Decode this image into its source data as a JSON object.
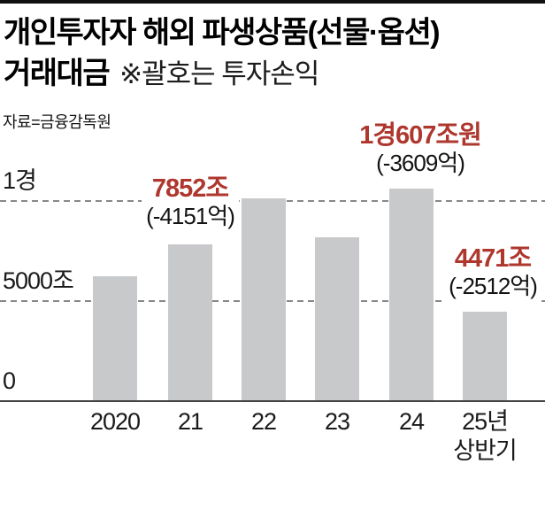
{
  "title": {
    "line1": "개인투자자 해외 파생상품(선물·옵션)",
    "line2": "거래대금",
    "note": "※괄호는 투자손익"
  },
  "source": "자료=금융감독원",
  "chart_data": {
    "type": "bar",
    "title": "개인투자자 해외 파생상품(선물·옵션) 거래대금",
    "note": "※괄호는 투자손익 (values in parentheses are investor profit/loss)",
    "source": "자료=금융감독원",
    "unit": "조원",
    "categories": [
      "2020",
      "21",
      "22",
      "23",
      "24",
      "25년 상반기"
    ],
    "values": [
      6260,
      7852,
      10150,
      8200,
      10607,
      4471
    ],
    "x_tick_lines": [
      [
        "2020"
      ],
      [
        "21"
      ],
      [
        "22"
      ],
      [
        "23"
      ],
      [
        "24"
      ],
      [
        "25년",
        "상반기"
      ]
    ],
    "ylim": [
      0,
      11000
    ],
    "grid": "dashed horizontal at ticks",
    "legend": "none",
    "y_axis": {
      "ticks": [
        {
          "label": "1경",
          "value": 10000
        },
        {
          "label": "5000조",
          "value": 5000
        },
        {
          "label": "0",
          "value": 0
        }
      ]
    },
    "annotations": [
      {
        "index": 1,
        "category": "21",
        "value_label": "7852조",
        "pnl_label": "(-4151억)"
      },
      {
        "index": 4,
        "category": "24",
        "value_label": "1경607조원",
        "pnl_label": "(-3609억)"
      },
      {
        "index": 5,
        "category": "25년 상반기",
        "value_label": "4471조",
        "pnl_label": "(-2512억)"
      }
    ],
    "style": {
      "bar_color": "#c8c9cb",
      "accent_red": "#ae372e",
      "grid_color": "#888888",
      "baseline_color": "#444444",
      "top_rule_color": "#101010",
      "background": "#ffffff"
    }
  }
}
